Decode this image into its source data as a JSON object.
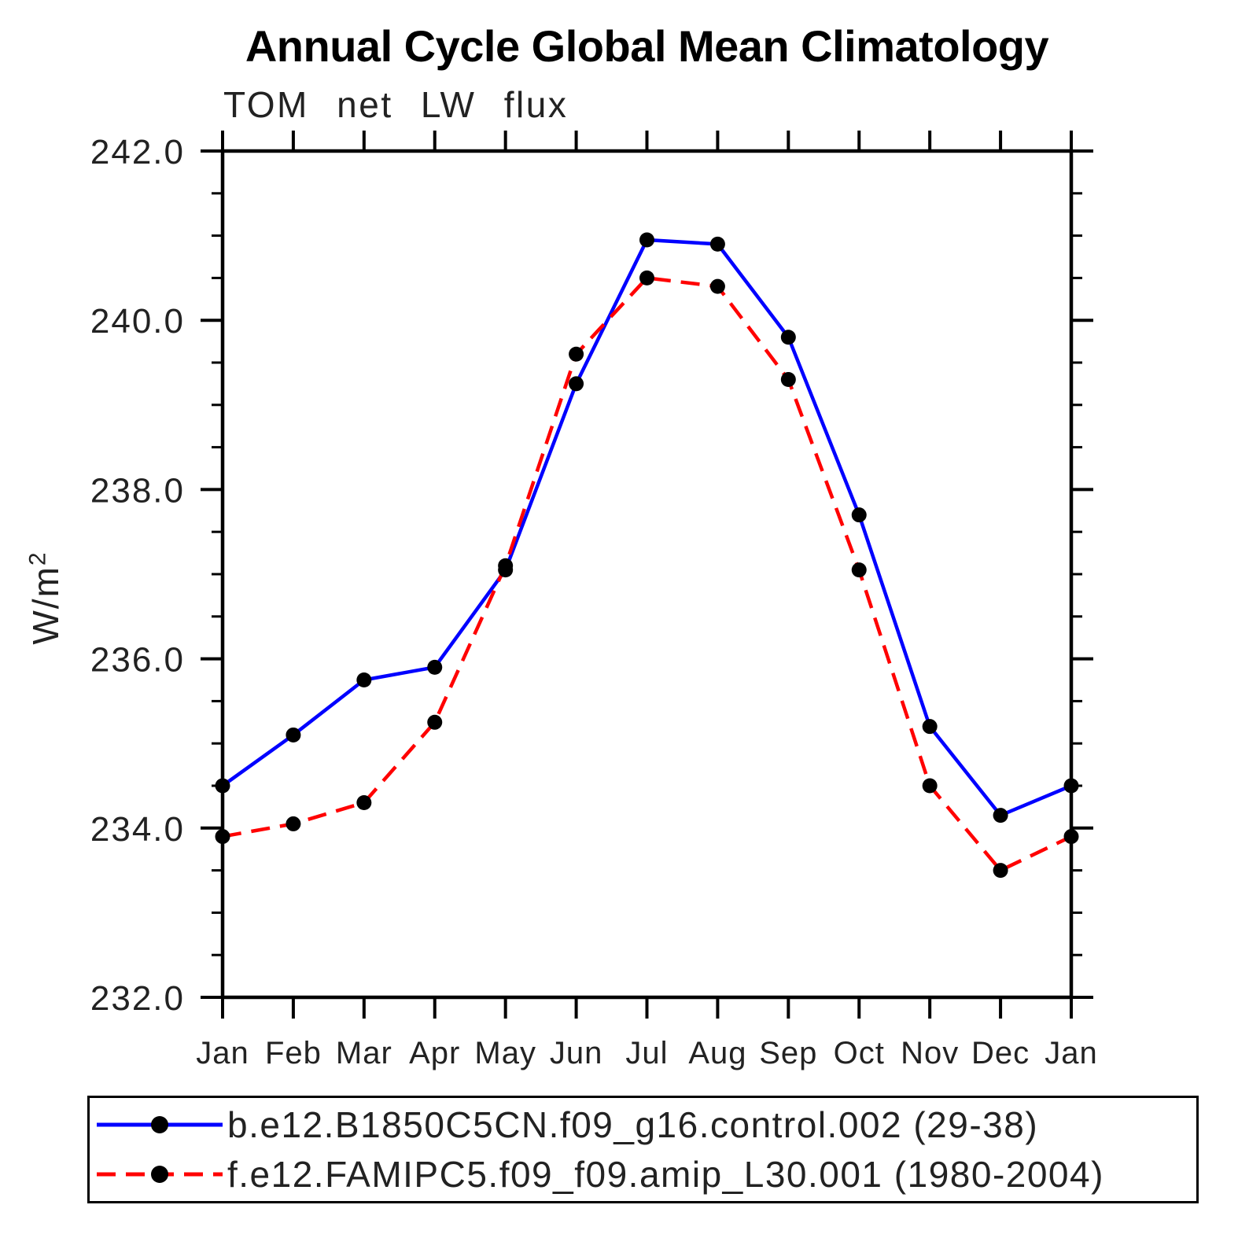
{
  "title": "Annual Cycle Global Mean Climatology",
  "subtitle": "TOM net LW flux",
  "ylabel": {
    "base": "W/m",
    "sup": "2"
  },
  "chart_data": {
    "type": "line",
    "categories": [
      "Jan",
      "Feb",
      "Mar",
      "Apr",
      "May",
      "Jun",
      "Jul",
      "Aug",
      "Sep",
      "Oct",
      "Nov",
      "Dec",
      "Jan"
    ],
    "series": [
      {
        "name": "b.e12.B1850C5CN.f09_g16.control.002 (29-38)",
        "color": "#0000ff",
        "line_style": "solid",
        "marker": "filled-circle",
        "marker_color": "#000000",
        "values": [
          234.5,
          235.1,
          235.75,
          235.9,
          237.05,
          239.25,
          240.95,
          240.9,
          239.8,
          237.7,
          235.2,
          234.15,
          234.5
        ]
      },
      {
        "name": "f.e12.FAMIPC5.f09_f09.amip_L30.001 (1980-2004)",
        "color": "#ff0000",
        "line_style": "dashed",
        "marker": "filled-circle",
        "marker_color": "#000000",
        "values": [
          233.9,
          234.05,
          234.3,
          235.25,
          237.1,
          239.6,
          240.5,
          240.4,
          239.3,
          237.05,
          234.5,
          233.5,
          233.9
        ]
      }
    ],
    "ylim": [
      232.0,
      242.0
    ],
    "ytick_major_values": [
      232,
      234,
      236,
      238,
      240,
      242
    ],
    "ytick_major_labels": [
      "232.0",
      "234.0",
      "236.0",
      "238.0",
      "240.0",
      "242.0"
    ],
    "ytick_minor_step": 0.5,
    "grid": false,
    "legend_position": "bottom",
    "axis_color": "#000000",
    "tick_label_color": "#222222"
  }
}
